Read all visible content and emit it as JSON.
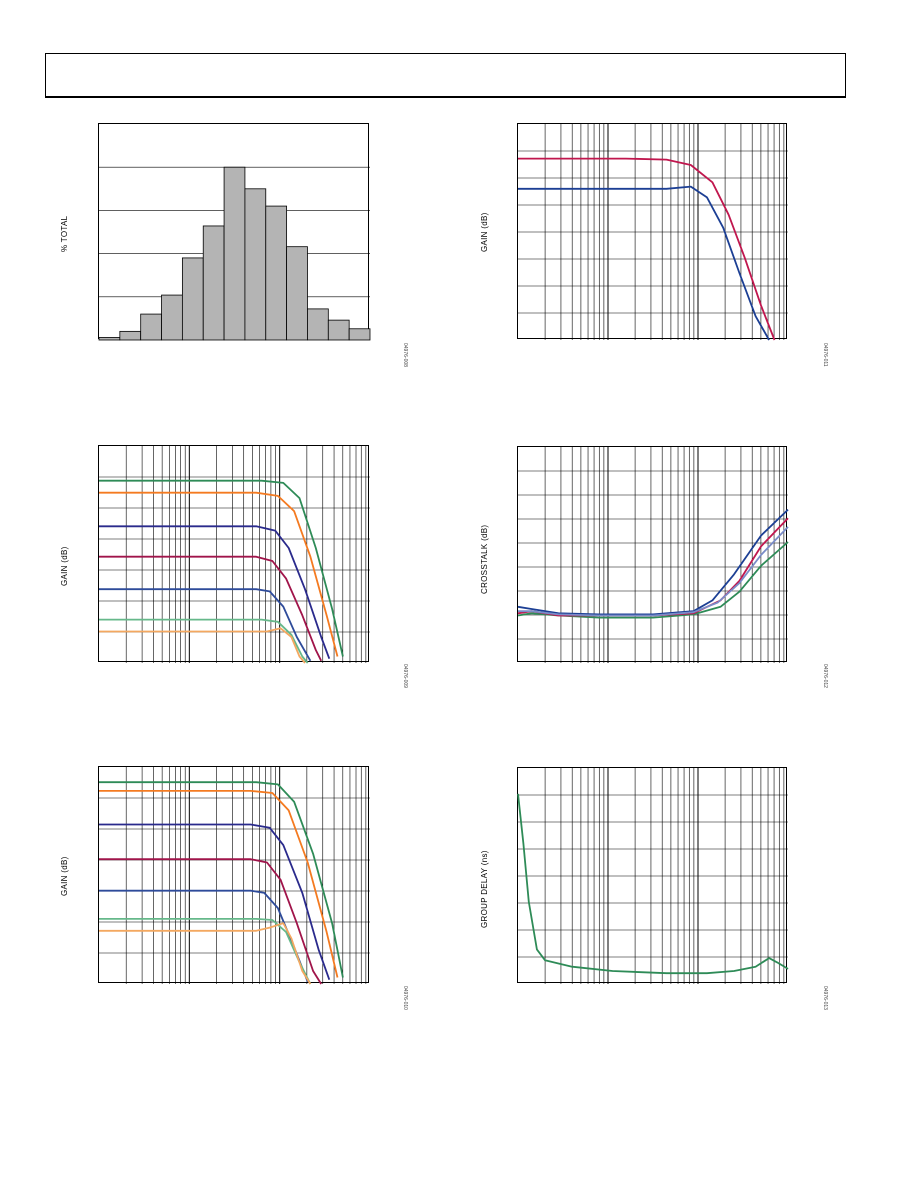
{
  "header": {
    "text": ""
  },
  "charts": [
    {
      "id": "hist",
      "chart_data": {
        "type": "bar",
        "ylabel": "% TOTAL",
        "figure_code": "04976-008",
        "grid": true,
        "ylim": [
          0,
          25
        ],
        "values": [
          0.3,
          1.0,
          3.0,
          5.2,
          9.5,
          13.2,
          20.0,
          17.5,
          15.5,
          10.8,
          3.6,
          2.3,
          1.3
        ],
        "bar_color": "#b4b4b4"
      }
    },
    {
      "id": "gain-top-right",
      "chart_data": {
        "type": "line",
        "ylabel": "GAIN (dB)",
        "figure_code": "04976-011",
        "x_log_decades": [
          5,
          4,
          5
        ],
        "grid": true,
        "ylim": [
          0,
          10
        ],
        "series": [
          {
            "color": "#c0174e",
            "values": [
              [
                0,
                8.4
              ],
              [
                0.2,
                8.4
              ],
              [
                0.4,
                8.4
              ],
              [
                0.55,
                8.35
              ],
              [
                0.64,
                8.1
              ],
              [
                0.72,
                7.3
              ],
              [
                0.78,
                5.8
              ],
              [
                0.84,
                3.8
              ],
              [
                0.9,
                1.6
              ],
              [
                0.95,
                0.0
              ]
            ]
          },
          {
            "color": "#1c3f94",
            "values": [
              [
                0,
                7.0
              ],
              [
                0.2,
                7.0
              ],
              [
                0.4,
                7.0
              ],
              [
                0.55,
                7.0
              ],
              [
                0.64,
                7.1
              ],
              [
                0.7,
                6.6
              ],
              [
                0.76,
                5.2
              ],
              [
                0.82,
                3.1
              ],
              [
                0.88,
                1.1
              ],
              [
                0.93,
                0.0
              ]
            ]
          }
        ]
      }
    },
    {
      "id": "gain-mid-left",
      "chart_data": {
        "type": "line",
        "ylabel": "GAIN (dB)",
        "figure_code": "04976-009",
        "x_log_decades": [
          6,
          5,
          5
        ],
        "grid": true,
        "ylim": [
          0,
          10
        ],
        "series": [
          {
            "color": "#2e8b57",
            "values": [
              [
                0,
                8.4
              ],
              [
                0.6,
                8.4
              ],
              [
                0.68,
                8.3
              ],
              [
                0.74,
                7.6
              ],
              [
                0.8,
                5.3
              ],
              [
                0.86,
                2.5
              ],
              [
                0.9,
                0.3
              ]
            ]
          },
          {
            "color": "#f47a20",
            "values": [
              [
                0,
                7.85
              ],
              [
                0.58,
                7.85
              ],
              [
                0.66,
                7.7
              ],
              [
                0.72,
                7.0
              ],
              [
                0.78,
                4.9
              ],
              [
                0.84,
                2.2
              ],
              [
                0.88,
                0.3
              ]
            ]
          },
          {
            "color": "#2a2a8c",
            "values": [
              [
                0,
                6.3
              ],
              [
                0.58,
                6.3
              ],
              [
                0.65,
                6.1
              ],
              [
                0.7,
                5.3
              ],
              [
                0.76,
                3.4
              ],
              [
                0.82,
                1.2
              ],
              [
                0.85,
                0.2
              ]
            ]
          },
          {
            "color": "#a0144a",
            "values": [
              [
                0,
                4.9
              ],
              [
                0.58,
                4.9
              ],
              [
                0.64,
                4.7
              ],
              [
                0.69,
                3.9
              ],
              [
                0.75,
                2.2
              ],
              [
                0.8,
                0.6
              ],
              [
                0.82,
                0.1
              ]
            ]
          },
          {
            "color": "#2e4b9a",
            "values": [
              [
                0,
                3.4
              ],
              [
                0.58,
                3.4
              ],
              [
                0.63,
                3.3
              ],
              [
                0.68,
                2.6
              ],
              [
                0.73,
                1.2
              ],
              [
                0.78,
                0.1
              ]
            ]
          },
          {
            "color": "#66b88a",
            "values": [
              [
                0,
                2.0
              ],
              [
                0.6,
                2.0
              ],
              [
                0.66,
                1.9
              ],
              [
                0.71,
                1.3
              ],
              [
                0.75,
                0.3
              ],
              [
                0.77,
                0.0
              ]
            ]
          },
          {
            "color": "#f4a860",
            "values": [
              [
                0,
                1.45
              ],
              [
                0.62,
                1.45
              ],
              [
                0.67,
                1.6
              ],
              [
                0.71,
                1.2
              ],
              [
                0.74,
                0.3
              ],
              [
                0.76,
                0.0
              ]
            ]
          }
        ]
      }
    },
    {
      "id": "crosstalk",
      "chart_data": {
        "type": "line",
        "ylabel": "CROSSTALK (dB)",
        "figure_code": "04976-012",
        "x_log_decades": [
          4,
          6,
          5
        ],
        "grid": true,
        "ylim": [
          0,
          10
        ],
        "series": [
          {
            "color": "#2e8b57",
            "values": [
              [
                0,
                2.2
              ],
              [
                0.05,
                2.3
              ],
              [
                0.15,
                2.2
              ],
              [
                0.3,
                2.1
              ],
              [
                0.5,
                2.1
              ],
              [
                0.65,
                2.25
              ],
              [
                0.75,
                2.6
              ],
              [
                0.82,
                3.3
              ],
              [
                0.9,
                4.5
              ],
              [
                1.0,
                5.6
              ]
            ]
          },
          {
            "color": "#c0174e",
            "values": [
              [
                0,
                2.3
              ],
              [
                0.05,
                2.4
              ],
              [
                0.15,
                2.2
              ],
              [
                0.3,
                2.2
              ],
              [
                0.5,
                2.2
              ],
              [
                0.65,
                2.3
              ],
              [
                0.75,
                2.9
              ],
              [
                0.82,
                3.8
              ],
              [
                0.9,
                5.4
              ],
              [
                1.0,
                6.7
              ]
            ]
          },
          {
            "color": "#1c3f94",
            "values": [
              [
                0,
                2.6
              ],
              [
                0.05,
                2.5
              ],
              [
                0.15,
                2.3
              ],
              [
                0.3,
                2.25
              ],
              [
                0.5,
                2.25
              ],
              [
                0.65,
                2.4
              ],
              [
                0.72,
                2.9
              ],
              [
                0.8,
                4.1
              ],
              [
                0.9,
                5.9
              ],
              [
                1.0,
                7.1
              ]
            ]
          },
          {
            "color": "#7a8cc8",
            "values": [
              [
                0,
                2.4
              ],
              [
                0.05,
                2.4
              ],
              [
                0.15,
                2.25
              ],
              [
                0.3,
                2.2
              ],
              [
                0.5,
                2.2
              ],
              [
                0.65,
                2.35
              ],
              [
                0.74,
                2.8
              ],
              [
                0.82,
                3.7
              ],
              [
                0.9,
                5.0
              ],
              [
                1.0,
                6.3
              ]
            ]
          }
        ]
      }
    },
    {
      "id": "gain-bottom-left",
      "chart_data": {
        "type": "line",
        "ylabel": "GAIN (dB)",
        "figure_code": "04976-010",
        "x_log_decades": [
          6,
          5,
          5
        ],
        "grid": true,
        "ylim": [
          0,
          10
        ],
        "series": [
          {
            "color": "#2e8b57",
            "values": [
              [
                0,
                9.3
              ],
              [
                0.58,
                9.3
              ],
              [
                0.66,
                9.2
              ],
              [
                0.72,
                8.4
              ],
              [
                0.79,
                6.0
              ],
              [
                0.86,
                2.8
              ],
              [
                0.9,
                0.3
              ]
            ]
          },
          {
            "color": "#f47a20",
            "values": [
              [
                0,
                8.9
              ],
              [
                0.56,
                8.9
              ],
              [
                0.64,
                8.8
              ],
              [
                0.7,
                8.0
              ],
              [
                0.77,
                5.6
              ],
              [
                0.84,
                2.4
              ],
              [
                0.88,
                0.3
              ]
            ]
          },
          {
            "color": "#2a2a8c",
            "values": [
              [
                0,
                7.35
              ],
              [
                0.56,
                7.35
              ],
              [
                0.63,
                7.2
              ],
              [
                0.68,
                6.4
              ],
              [
                0.75,
                4.2
              ],
              [
                0.81,
                1.6
              ],
              [
                0.85,
                0.2
              ]
            ]
          },
          {
            "color": "#a0144a",
            "values": [
              [
                0,
                5.75
              ],
              [
                0.56,
                5.75
              ],
              [
                0.62,
                5.6
              ],
              [
                0.67,
                4.8
              ],
              [
                0.73,
                2.8
              ],
              [
                0.79,
                0.6
              ],
              [
                0.82,
                0.0
              ]
            ]
          },
          {
            "color": "#2e4b9a",
            "values": [
              [
                0,
                4.3
              ],
              [
                0.56,
                4.3
              ],
              [
                0.61,
                4.2
              ],
              [
                0.66,
                3.5
              ],
              [
                0.72,
                1.7
              ],
              [
                0.77,
                0.1
              ]
            ]
          },
          {
            "color": "#66b88a",
            "values": [
              [
                0,
                3.0
              ],
              [
                0.58,
                3.0
              ],
              [
                0.64,
                2.95
              ],
              [
                0.69,
                2.4
              ],
              [
                0.74,
                1.0
              ],
              [
                0.78,
                0.0
              ]
            ]
          },
          {
            "color": "#f4a860",
            "values": [
              [
                0,
                2.45
              ],
              [
                0.58,
                2.45
              ],
              [
                0.63,
                2.6
              ],
              [
                0.68,
                2.8
              ],
              [
                0.71,
                2.1
              ],
              [
                0.75,
                0.6
              ],
              [
                0.78,
                0.0
              ]
            ]
          }
        ]
      }
    },
    {
      "id": "group-delay",
      "chart_data": {
        "type": "line",
        "ylabel": "GROUP DELAY (ns)",
        "figure_code": "04976-013",
        "x_log_decades": [
          4,
          6,
          5
        ],
        "grid": true,
        "ylim": [
          0,
          10
        ],
        "series": [
          {
            "color": "#2e8b57",
            "values": [
              [
                0,
                8.8
              ],
              [
                0.02,
                6.5
              ],
              [
                0.04,
                3.8
              ],
              [
                0.07,
                1.6
              ],
              [
                0.1,
                1.1
              ],
              [
                0.2,
                0.8
              ],
              [
                0.35,
                0.6
              ],
              [
                0.55,
                0.5
              ],
              [
                0.7,
                0.5
              ],
              [
                0.8,
                0.6
              ],
              [
                0.88,
                0.8
              ],
              [
                0.93,
                1.2
              ],
              [
                0.96,
                1.0
              ],
              [
                1.0,
                0.7
              ]
            ]
          }
        ]
      }
    }
  ]
}
